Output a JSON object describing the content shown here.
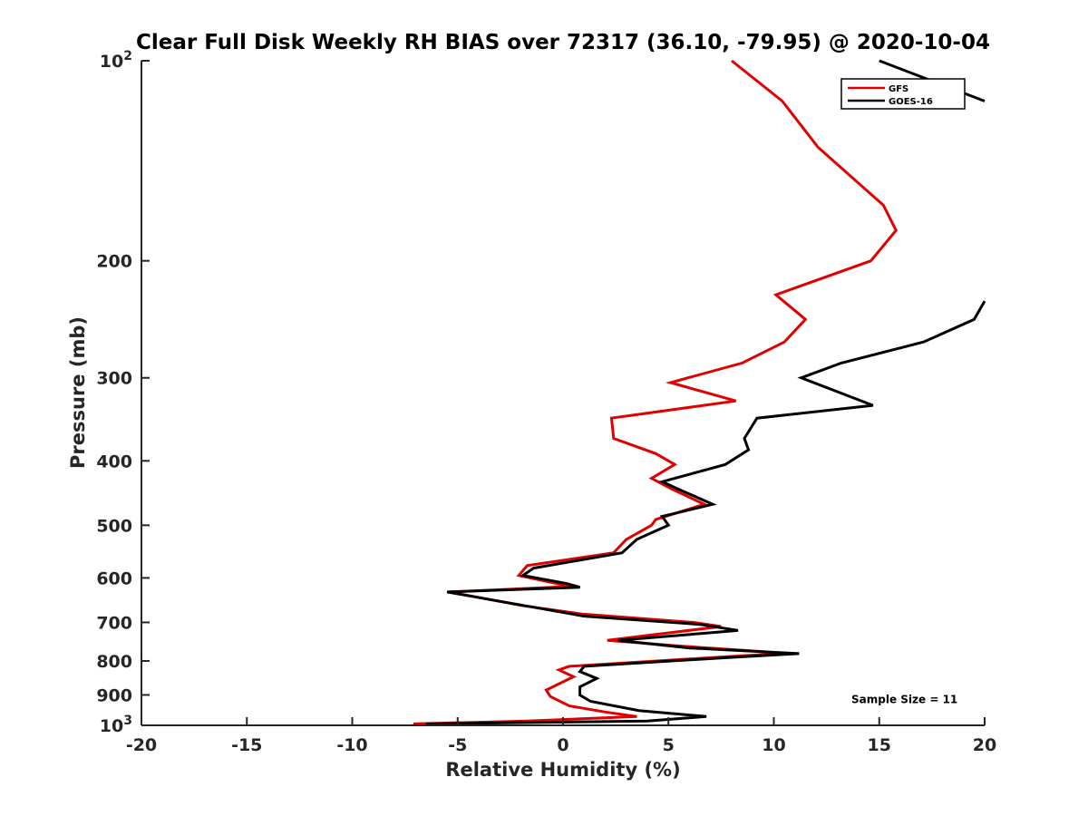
{
  "chart_data": {
    "type": "line",
    "title": "Clear Full Disk Weekly RH BIAS over 72317 (36.10, -79.95) @ 2020-10-04",
    "xlabel": "Relative Humidity (%)",
    "ylabel": "Pressure (mb)",
    "xlim": [
      -20,
      20
    ],
    "ylim": [
      100,
      1000
    ],
    "y_scale": "log",
    "y_reversed": true,
    "grid": false,
    "legend_position": "top-right",
    "x_ticks": [
      -20,
      -15,
      -10,
      -5,
      0,
      5,
      10,
      15,
      20
    ],
    "x_tick_labels": [
      "-20",
      "-15",
      "-10",
      "-5",
      "0",
      "5",
      "10",
      "15",
      "20"
    ],
    "y_ticks": [
      100,
      200,
      300,
      400,
      500,
      600,
      700,
      800,
      900,
      1000
    ],
    "y_tick_labels": [
      {
        "base": "10",
        "sup": "2"
      },
      {
        "base": "200",
        "sup": ""
      },
      {
        "base": "300",
        "sup": ""
      },
      {
        "base": "400",
        "sup": ""
      },
      {
        "base": "500",
        "sup": ""
      },
      {
        "base": "600",
        "sup": ""
      },
      {
        "base": "700",
        "sup": ""
      },
      {
        "base": "800",
        "sup": ""
      },
      {
        "base": "900",
        "sup": ""
      },
      {
        "base": "10",
        "sup": "3"
      }
    ],
    "series": [
      {
        "name": "GFS",
        "color": "#e00000",
        "points": [
          [
            8.0,
            100
          ],
          [
            10.4,
            115
          ],
          [
            12.1,
            135
          ],
          [
            15.2,
            165
          ],
          [
            15.8,
            180
          ],
          [
            14.6,
            200
          ],
          [
            10.1,
            225
          ],
          [
            11.5,
            245
          ],
          [
            10.5,
            265
          ],
          [
            8.5,
            285
          ],
          [
            5.1,
            305
          ],
          [
            8.2,
            325
          ],
          [
            2.3,
            345
          ],
          [
            2.4,
            370
          ],
          [
            4.4,
            390
          ],
          [
            5.3,
            405
          ],
          [
            4.2,
            425
          ],
          [
            5.1,
            440
          ],
          [
            6.7,
            465
          ],
          [
            4.4,
            490
          ],
          [
            4.2,
            500
          ],
          [
            3.0,
            525
          ],
          [
            2.4,
            550
          ],
          [
            -1.7,
            575
          ],
          [
            -2.1,
            595
          ],
          [
            -0.5,
            610
          ],
          [
            0.4,
            618
          ],
          [
            -5.4,
            630
          ],
          [
            -2.0,
            660
          ],
          [
            0.9,
            680
          ],
          [
            6.2,
            700
          ],
          [
            7.5,
            710
          ],
          [
            2.1,
            745
          ],
          [
            5.6,
            760
          ],
          [
            9.6,
            775
          ],
          [
            10.2,
            780
          ],
          [
            0.3,
            815
          ],
          [
            -0.2,
            825
          ],
          [
            0.5,
            845
          ],
          [
            -0.8,
            885
          ],
          [
            -0.6,
            905
          ],
          [
            0.3,
            935
          ],
          [
            2.0,
            955
          ],
          [
            3.5,
            970
          ],
          [
            -1.7,
            985
          ],
          [
            -7.1,
            995
          ]
        ]
      },
      {
        "name": "GOES-16",
        "color": "#000000",
        "points": [
          [
            15.0,
            100
          ],
          [
            20.0,
            115
          ],
          null,
          [
            20.0,
            230
          ],
          [
            19.5,
            245
          ],
          [
            17.1,
            265
          ],
          [
            13.2,
            285
          ],
          [
            11.3,
            300
          ],
          [
            14.7,
            330
          ],
          [
            9.2,
            345
          ],
          [
            8.6,
            370
          ],
          [
            8.8,
            385
          ],
          [
            7.7,
            405
          ],
          [
            4.7,
            430
          ],
          [
            5.4,
            440
          ],
          [
            7.1,
            465
          ],
          [
            4.7,
            485
          ],
          [
            5.0,
            500
          ],
          [
            3.5,
            525
          ],
          [
            2.8,
            550
          ],
          [
            -1.4,
            580
          ],
          [
            -1.9,
            595
          ],
          [
            0.2,
            612
          ],
          [
            0.8,
            620
          ],
          [
            -5.5,
            630
          ],
          [
            -1.9,
            660
          ],
          [
            1.0,
            685
          ],
          [
            6.5,
            705
          ],
          [
            8.3,
            720
          ],
          [
            2.6,
            745
          ],
          [
            6.0,
            765
          ],
          [
            11.2,
            780
          ],
          [
            8.0,
            790
          ],
          [
            1.0,
            815
          ],
          [
            0.8,
            830
          ],
          [
            1.6,
            850
          ],
          [
            0.8,
            875
          ],
          [
            0.8,
            900
          ],
          [
            1.3,
            920
          ],
          [
            3.6,
            950
          ],
          [
            6.8,
            970
          ],
          [
            4.0,
            985
          ],
          [
            -6.5,
            995
          ]
        ]
      }
    ],
    "annotations": [
      {
        "text": "Sample Size = 11",
        "x": 16.2,
        "y": 915
      }
    ]
  }
}
